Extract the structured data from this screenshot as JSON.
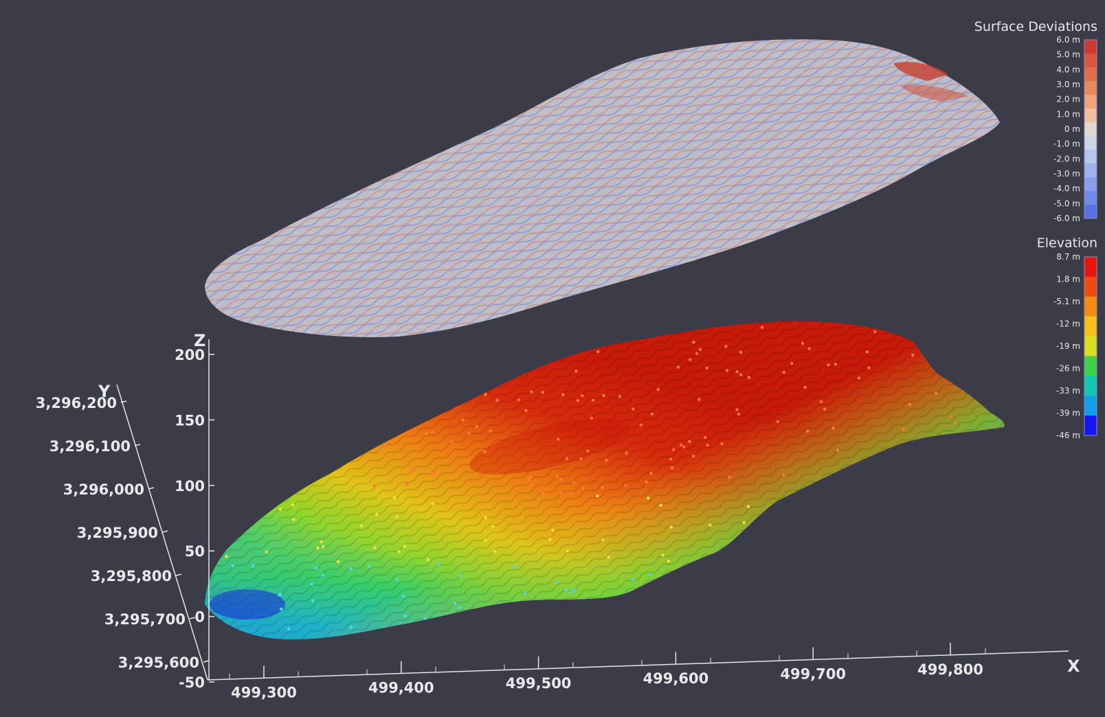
{
  "scene": {
    "background": "#3b3c47",
    "axis_color": "#e6e6e6"
  },
  "legends": {
    "surface_deviations": {
      "title": "Surface Deviations",
      "ticks": [
        "6.0 m",
        "5.0 m",
        "4.0 m",
        "3.0 m",
        "2.0 m",
        "1.0 m",
        "0 m",
        "-1.0 m",
        "-2.0 m",
        "-3.0 m",
        "-4.0 m",
        "-5.0 m",
        "-6.0 m"
      ],
      "colors": [
        "#cc3a33",
        "#d8553e",
        "#e06e4c",
        "#e8895f",
        "#efa47b",
        "#f0bea0",
        "#e3d8cf",
        "#ccd6e8",
        "#b7c6ec",
        "#9fb2ee",
        "#8a9fec",
        "#728aea",
        "#5872e4"
      ]
    },
    "elevation": {
      "title": "Elevation",
      "ticks": [
        "8.7 m",
        "1.8 m",
        "-5.1 m",
        "-12 m",
        "-19 m",
        "-26 m",
        "-33 m",
        "-39 m",
        "-46 m"
      ],
      "colors": [
        "#e8150f",
        "#f04a0c",
        "#f78a10",
        "#f6c21a",
        "#d9e022",
        "#3fd14a",
        "#12c8b0",
        "#139ee8",
        "#1616f5"
      ]
    }
  },
  "axes": {
    "z": {
      "title": "Z",
      "ticks": [
        "200",
        "150",
        "100",
        "50",
        "0",
        "-50"
      ]
    },
    "y": {
      "title": "Y",
      "ticks": [
        "3,296,200",
        "3,296,100",
        "3,296,000",
        "3,295,900",
        "3,295,800",
        "3,295,700",
        "3,295,600"
      ]
    },
    "x": {
      "title": "X",
      "ticks": [
        "499,300",
        "499,400",
        "499,500",
        "499,600",
        "499,700",
        "499,800"
      ]
    }
  }
}
